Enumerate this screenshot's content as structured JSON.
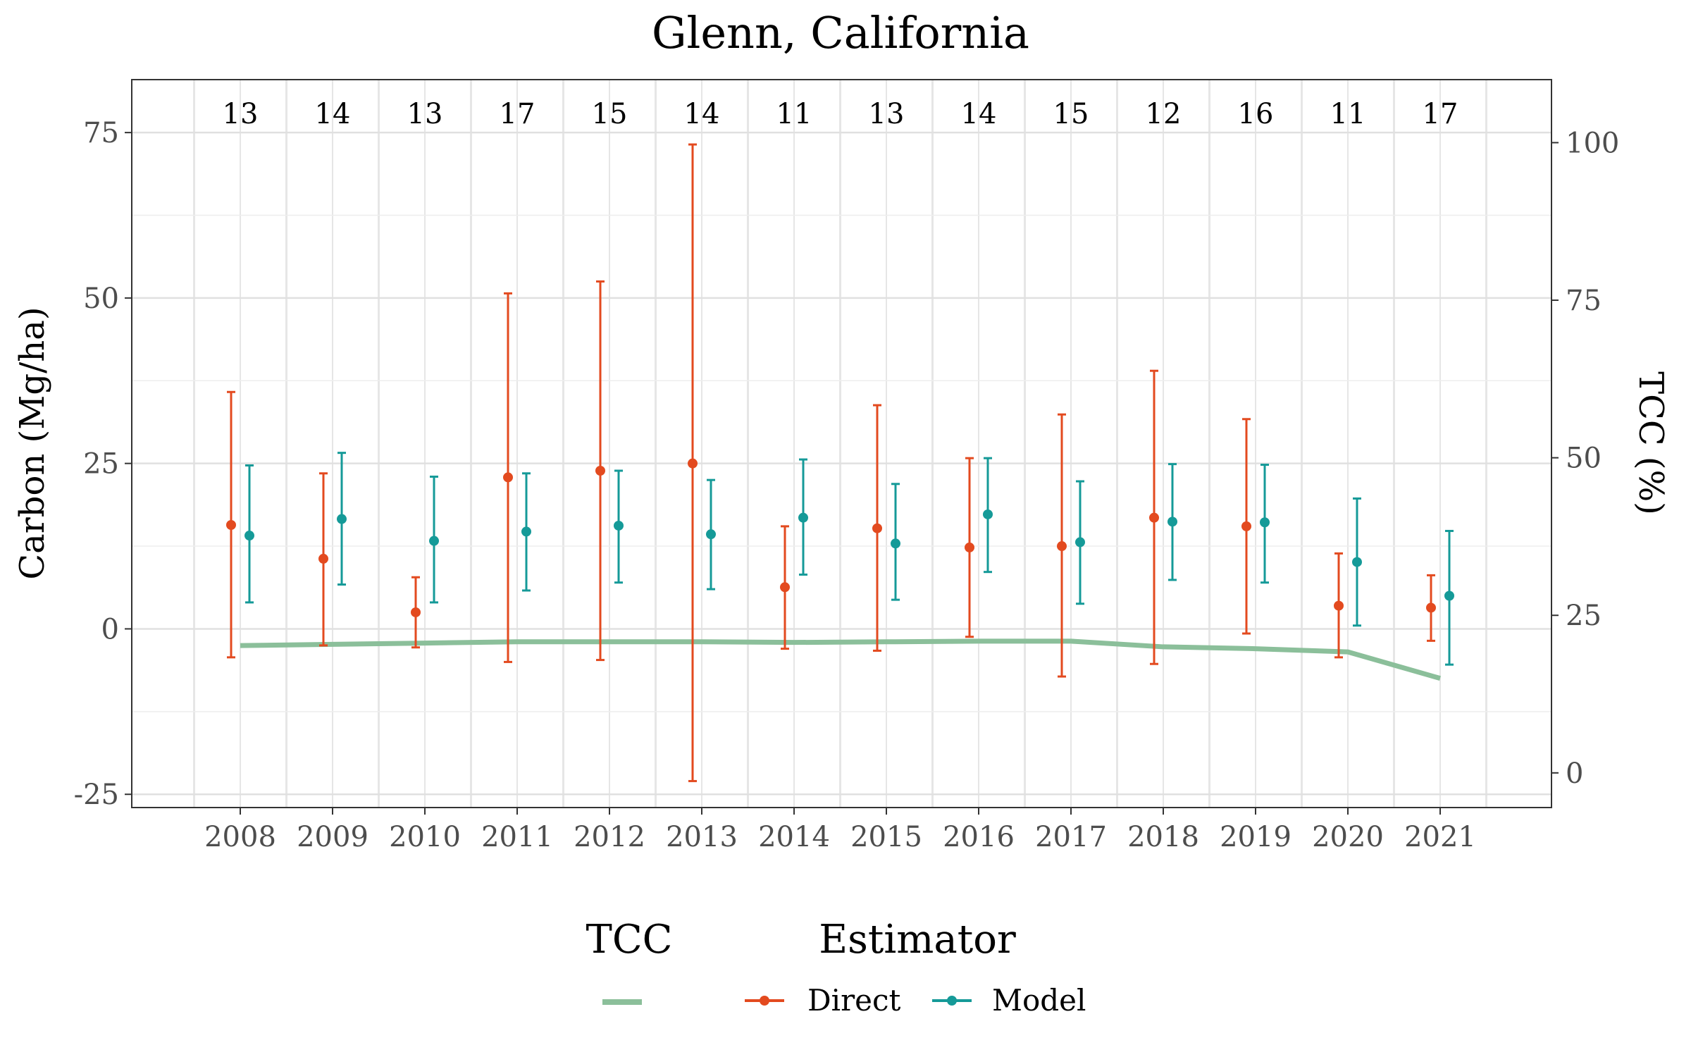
{
  "chart_data": {
    "type": "line",
    "title": "Glenn, California",
    "ylabel": "Carbon (Mg/ha)",
    "y2label": "TCC (%)",
    "xlabel": "",
    "x": [
      "2008",
      "2009",
      "2010",
      "2011",
      "2012",
      "2013",
      "2014",
      "2015",
      "2016",
      "2017",
      "2018",
      "2019",
      "2020",
      "2021"
    ],
    "ylim": [
      -27,
      83
    ],
    "y2lim": [
      -5.5,
      110
    ],
    "yticks": [
      -25,
      0,
      25,
      50,
      75
    ],
    "y2ticks": [
      0,
      25,
      50,
      75,
      100
    ],
    "counts": [
      13,
      14,
      13,
      17,
      15,
      14,
      11,
      13,
      14,
      15,
      12,
      16,
      11,
      17
    ],
    "grid": true,
    "legend_position": "bottom",
    "series": [
      {
        "name": "Direct",
        "color": "#E34A1F",
        "axis": "left",
        "values": [
          15.7,
          10.6,
          2.5,
          22.9,
          23.9,
          25.0,
          6.3,
          15.2,
          12.3,
          12.5,
          16.8,
          15.5,
          3.5,
          3.2
        ],
        "lower": [
          -4.3,
          -2.5,
          -2.8,
          -5.0,
          -4.7,
          -23.0,
          -3.0,
          -3.3,
          -1.2,
          -7.2,
          -5.3,
          -0.7,
          -4.3,
          -1.8
        ],
        "upper": [
          35.8,
          23.5,
          7.8,
          50.7,
          52.5,
          73.2,
          15.5,
          33.8,
          25.8,
          32.4,
          39.0,
          31.7,
          11.4,
          8.1
        ]
      },
      {
        "name": "Model",
        "color": "#159A98",
        "axis": "left",
        "values": [
          14.1,
          16.6,
          13.3,
          14.7,
          15.6,
          14.3,
          16.8,
          12.9,
          17.3,
          13.1,
          16.2,
          16.1,
          10.1,
          5.0
        ],
        "lower": [
          4.0,
          6.7,
          4.0,
          5.8,
          7.0,
          6.0,
          8.2,
          4.4,
          8.6,
          3.8,
          7.4,
          7.0,
          0.5,
          -5.4
        ],
        "upper": [
          24.7,
          26.6,
          23.0,
          23.5,
          23.9,
          22.5,
          25.6,
          21.9,
          25.8,
          22.3,
          24.9,
          24.8,
          19.7,
          14.8
        ]
      },
      {
        "name": "TCC",
        "color": "#8BBF9A",
        "axis": "right",
        "values": [
          20.2,
          20.4,
          20.6,
          20.8,
          20.8,
          20.8,
          20.7,
          20.8,
          20.9,
          20.9,
          20.0,
          19.7,
          19.2,
          15.0
        ]
      }
    ],
    "legend": {
      "tcc_title": "TCC",
      "estimator_title": "Estimator",
      "direct_label": "Direct",
      "model_label": "Model"
    }
  }
}
